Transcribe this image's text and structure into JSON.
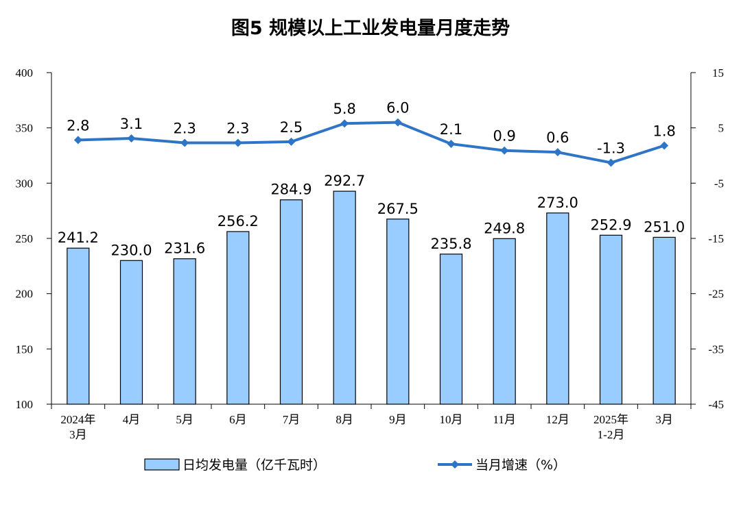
{
  "chart_data": {
    "type": "bar",
    "title": "图5  规模以上工业发电量月度走势",
    "categories": [
      [
        "2024年",
        "3月"
      ],
      [
        "4月"
      ],
      [
        "5月"
      ],
      [
        "6月"
      ],
      [
        "7月"
      ],
      [
        "8月"
      ],
      [
        "9月"
      ],
      [
        "10月"
      ],
      [
        "11月"
      ],
      [
        "12月"
      ],
      [
        "2025年",
        "1-2月"
      ],
      [
        "3月"
      ]
    ],
    "series": [
      {
        "name": "日均发电量（亿千瓦时）",
        "type": "bar",
        "axis": "left",
        "values": [
          241.2,
          230.0,
          231.6,
          256.2,
          284.9,
          292.7,
          267.5,
          235.8,
          249.8,
          273.0,
          252.9,
          251.0
        ],
        "labels": [
          "241.2",
          "230.0",
          "231.6",
          "256.2",
          "284.9",
          "292.7",
          "267.5",
          "235.8",
          "249.8",
          "273.0",
          "252.9",
          "251.0"
        ],
        "color": "#99CCFF"
      },
      {
        "name": "当月增速（%）",
        "type": "line",
        "axis": "right",
        "values": [
          2.8,
          3.1,
          2.3,
          2.3,
          2.5,
          5.8,
          6.0,
          2.1,
          0.9,
          0.6,
          -1.3,
          1.8
        ],
        "labels": [
          "2.8",
          "3.1",
          "2.3",
          "2.3",
          "2.5",
          "5.8",
          "6.0",
          "2.1",
          "0.9",
          "0.6",
          "-1.3",
          "1.8"
        ],
        "color": "#2E75C7"
      }
    ],
    "y_left": {
      "min": 100,
      "max": 400,
      "ticks": [
        "400",
        "350",
        "300",
        "250",
        "200",
        "150",
        "100"
      ]
    },
    "y_right": {
      "min": -45,
      "max": 15,
      "ticks": [
        "15",
        "5",
        "-5",
        "-15",
        "-25",
        "-35",
        "-45"
      ]
    },
    "grid": false,
    "legend_position": "bottom"
  }
}
